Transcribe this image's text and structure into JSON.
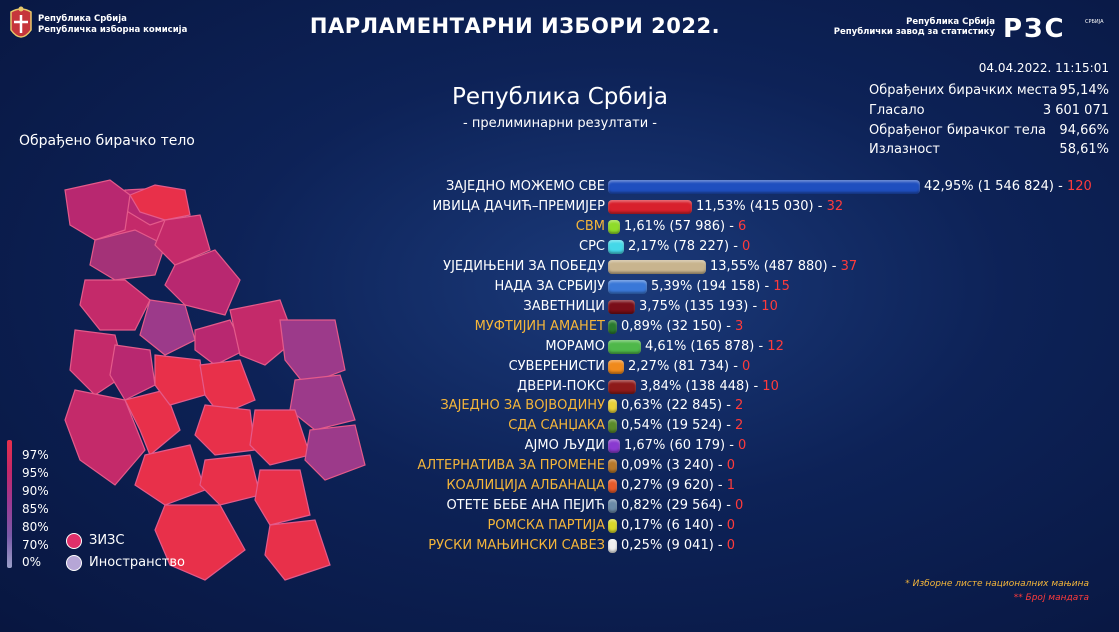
{
  "header": {
    "org_left_line1": "Република Србија",
    "org_left_line2": "Републичка изборна комисија",
    "title": "ПАРЛАМЕНТАРНИ ИЗБОРИ 2022.",
    "org_right_line1": "Република Србија",
    "org_right_line2": "Републички завод за статистику",
    "logo_text": "РЗС",
    "logo_small": "СРБИЈА"
  },
  "timestamp": "04.04.2022. 11:15:01",
  "stats": [
    {
      "label": "Обрађених бирачких места",
      "value": "95,14%"
    },
    {
      "label": "Гласало",
      "value": "3 601 071"
    },
    {
      "label": "Обрађеног бирачког тела",
      "value": "94,66%"
    },
    {
      "label": "Излазност",
      "value": "58,61%"
    }
  ],
  "region": {
    "title": "Република Србија",
    "subtitle": "- прелиминарни резултати -"
  },
  "map": {
    "label": "Обрађено бирачко тело"
  },
  "legend": {
    "scale": [
      "97%",
      "95%",
      "90%",
      "85%",
      "80%",
      "70%",
      "0%"
    ],
    "items": [
      {
        "label": "ЗИЗС",
        "color": "#e0306a"
      },
      {
        "label": "Иностранство",
        "color": "#b6a6d6"
      }
    ]
  },
  "parties": [
    {
      "name": "ЗАЈЕДНО МОЖЕМО СВЕ",
      "pct": 42.95,
      "pct_text": "42,95%",
      "votes": "(1 546 824)",
      "seats": "120",
      "color": "#1f4fbf",
      "national": false
    },
    {
      "name": "ИВИЦА ДАЧИЋ–ПРЕМИЈЕР",
      "pct": 11.53,
      "pct_text": "11,53%",
      "votes": "(415 030)",
      "seats": "32",
      "color": "#d8202c",
      "national": false
    },
    {
      "name": "СВМ",
      "pct": 1.61,
      "pct_text": "1,61%",
      "votes": "(57 986)",
      "seats": "6",
      "color": "#8fdc2a",
      "national": true
    },
    {
      "name": "СРС",
      "pct": 2.17,
      "pct_text": "2,17%",
      "votes": "(78 227)",
      "seats": "0",
      "color": "#44d8e8",
      "national": false
    },
    {
      "name": "УЈЕДИЊЕНИ ЗА ПОБЕДУ",
      "pct": 13.55,
      "pct_text": "13,55%",
      "votes": "(487 880)",
      "seats": "37",
      "color": "#c8b48e",
      "national": false
    },
    {
      "name": "НАДА ЗА СРБИЈУ",
      "pct": 5.39,
      "pct_text": "5,39%",
      "votes": "(194 158)",
      "seats": "15",
      "color": "#3a78d8",
      "national": false
    },
    {
      "name": "ЗАВЕТНИЦИ",
      "pct": 3.75,
      "pct_text": "3,75%",
      "votes": "(135 193)",
      "seats": "10",
      "color": "#7a0e18",
      "national": false
    },
    {
      "name": "МУФТИЈИН АМАНЕТ",
      "pct": 0.89,
      "pct_text": "0,89%",
      "votes": "(32 150)",
      "seats": "3",
      "color": "#2a7a2e",
      "national": true
    },
    {
      "name": "МОРАМО",
      "pct": 4.61,
      "pct_text": "4,61%",
      "votes": "(165 878)",
      "seats": "12",
      "color": "#4fb84a",
      "national": false
    },
    {
      "name": "СУВЕРЕНИСТИ",
      "pct": 2.27,
      "pct_text": "2,27%",
      "votes": "(81 734)",
      "seats": "0",
      "color": "#f08a1c",
      "national": false
    },
    {
      "name": "ДВЕРИ-ПОКС",
      "pct": 3.84,
      "pct_text": "3,84%",
      "votes": "(138 448)",
      "seats": "10",
      "color": "#8e1a1a",
      "national": false
    },
    {
      "name": "ЗАЈЕДНО ЗА ВОЈВОДИНУ",
      "pct": 0.63,
      "pct_text": "0,63%",
      "votes": "(22 845)",
      "seats": "2",
      "color": "#e8d23a",
      "national": true
    },
    {
      "name": "СДА САНЏАКА",
      "pct": 0.54,
      "pct_text": "0,54%",
      "votes": "(19 524)",
      "seats": "2",
      "color": "#5a8a2a",
      "national": true
    },
    {
      "name": "АЈМО ЉУДИ",
      "pct": 1.67,
      "pct_text": "1,67%",
      "votes": "(60 179)",
      "seats": "0",
      "color": "#8a3ad0",
      "national": false
    },
    {
      "name": "АЛТЕРНАТИВА ЗА ПРОМЕНЕ",
      "pct": 0.09,
      "pct_text": "0,09%",
      "votes": "(3 240)",
      "seats": "0",
      "color": "#b8782a",
      "national": true
    },
    {
      "name": "КОАЛИЦИЈА АЛБАНАЦА",
      "pct": 0.27,
      "pct_text": "0,27%",
      "votes": "(9 620)",
      "seats": "1",
      "color": "#e85a2a",
      "national": true
    },
    {
      "name": "ОТЕТЕ БЕБЕ АНА ПЕЈИЋ",
      "pct": 0.82,
      "pct_text": "0,82%",
      "votes": "(29 564)",
      "seats": "0",
      "color": "#6a8aa8",
      "national": false
    },
    {
      "name": "РОМСКА ПАРТИЈА",
      "pct": 0.17,
      "pct_text": "0,17%",
      "votes": "(6 140)",
      "seats": "0",
      "color": "#d8d82a",
      "national": true
    },
    {
      "name": "РУСКИ МАЊИНСКИ САВЕЗ",
      "pct": 0.25,
      "pct_text": "0,25%",
      "votes": "(9 041)",
      "seats": "0",
      "color": "#f0f0f0",
      "national": true
    }
  ],
  "notes": {
    "national": "* Изборне листе националних мањина",
    "seats": "** Број мандата"
  },
  "colors": {
    "bg": "#0d2257",
    "minority": "#f5b63a",
    "seats": "#ff3b3b"
  }
}
